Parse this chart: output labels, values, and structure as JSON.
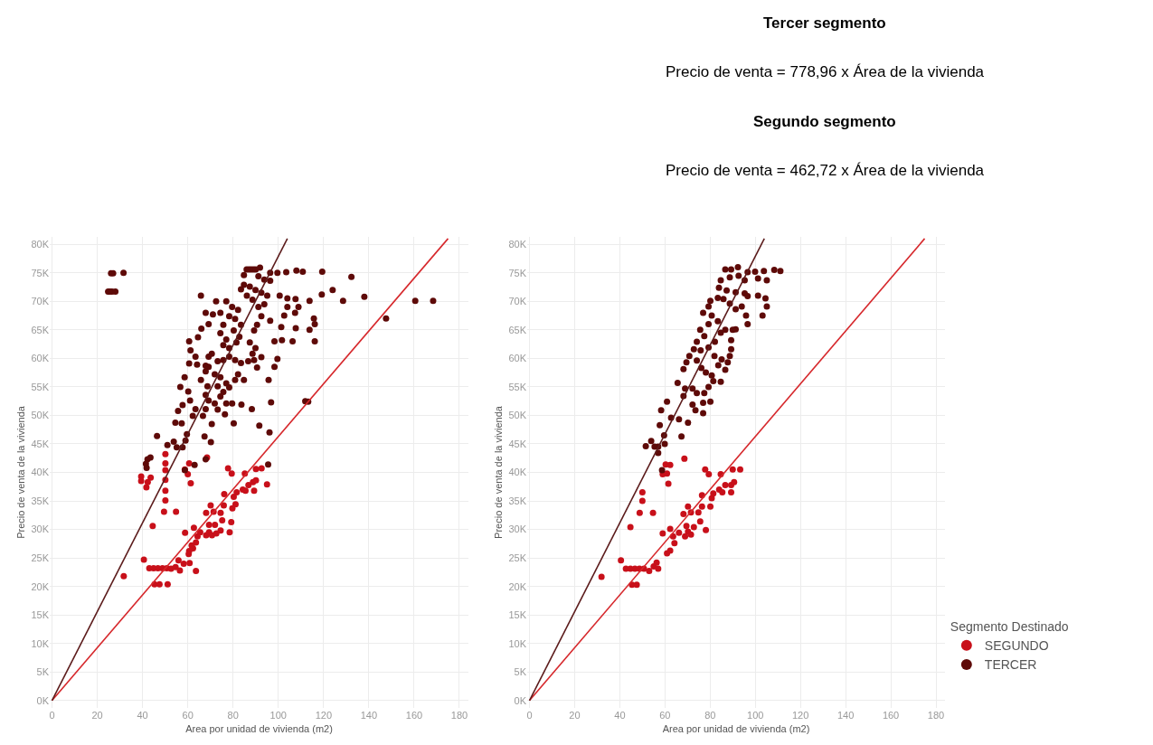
{
  "chart_data": [
    {
      "type": "scatter",
      "xlabel": "Area por unidad de vivienda (m2)",
      "ylabel": "Precio de venta de la vivienda",
      "xlim": [
        -1,
        184
      ],
      "xticks": [
        0,
        20,
        40,
        60,
        80,
        100,
        120,
        140,
        160,
        180
      ],
      "ylim": [
        -1300,
        81300
      ],
      "yticks": [
        {
          "value": 0,
          "label": "0K"
        },
        {
          "value": 5000,
          "label": "5K"
        },
        {
          "value": 10000,
          "label": "10K"
        },
        {
          "value": 15000,
          "label": "15K"
        },
        {
          "value": 20000,
          "label": "20K"
        },
        {
          "value": 25000,
          "label": "25K"
        },
        {
          "value": 30000,
          "label": "30K"
        },
        {
          "value": 35000,
          "label": "35K"
        },
        {
          "value": 40000,
          "label": "40K"
        },
        {
          "value": 45000,
          "label": "45K"
        },
        {
          "value": 50000,
          "label": "50K"
        },
        {
          "value": 55000,
          "label": "55K"
        },
        {
          "value": 60000,
          "label": "60K"
        },
        {
          "value": 65000,
          "label": "65K"
        },
        {
          "value": 70000,
          "label": "70K"
        },
        {
          "value": 75000,
          "label": "75K"
        },
        {
          "value": 80000,
          "label": "80K"
        }
      ],
      "grid": true,
      "marker": "circle",
      "series": [
        {
          "color": "#c8101a",
          "x": [
            31.7,
            40.6,
            43,
            44.9,
            46.8,
            48.8,
            50.7,
            52.6,
            54.6,
            56.5,
            55.9,
            58.2,
            60.8,
            63.6,
            45.3,
            47.5,
            51.1,
            44.5,
            49.5,
            54.8,
            50.1,
            50.1,
            50.1,
            50.1,
            50.1,
            50.1,
            39.4,
            39.4,
            41.7,
            42.3,
            43.6,
            58.7,
            60,
            61.3,
            60.6,
            68.5,
            58.8,
            62.7,
            60.6,
            62.3,
            63.6,
            64.3,
            65.5,
            68.1,
            69.4,
            70.7,
            72.6,
            69.4,
            70.1,
            68.1,
            71.4,
            72,
            74.5,
            75.2,
            74.5,
            75.9,
            76.1,
            78.5,
            79.2,
            79.7,
            81.1,
            80.3,
            81.6,
            84.3,
            85.5,
            86.8,
            88.8,
            90.1,
            89.3,
            95,
            85.2,
            90.1,
            92.6,
            77.8,
            79.4,
            61.7,
            60.4
          ],
          "values": [
            21800,
            24700,
            23200,
            23200,
            23200,
            23200,
            23200,
            23100,
            23400,
            22800,
            24600,
            24000,
            24100,
            22700,
            20400,
            20400,
            20400,
            30600,
            33100,
            33100,
            35100,
            36800,
            38700,
            40400,
            41600,
            43200,
            39300,
            38500,
            37400,
            38300,
            39100,
            40500,
            39700,
            38100,
            41600,
            42600,
            29400,
            30300,
            26200,
            26700,
            27700,
            28800,
            29500,
            29000,
            29500,
            29000,
            29300,
            30800,
            34200,
            32900,
            33100,
            30800,
            29800,
            31600,
            32900,
            34200,
            36200,
            29500,
            31300,
            33700,
            34400,
            35700,
            36500,
            37000,
            36800,
            37800,
            38300,
            38600,
            36800,
            37900,
            39800,
            40600,
            40700,
            40700,
            39800,
            27200,
            25700
          ]
        },
        {
          "color": "#5e0a08",
          "x": [
            26.1,
            27,
            31.6,
            24.8,
            25.5,
            26.5,
            28,
            65.8,
            91.9,
            86,
            87,
            88,
            89,
            90,
            96.4,
            99.6,
            103.5,
            108,
            110.8,
            119.4,
            132.3,
            124,
            119.2,
            128.6,
            138,
            160.5,
            168.4,
            147.6,
            111.9,
            113.2,
            96.1,
            95.5,
            100.6,
            104,
            107.6,
            113.8,
            104,
            108.9,
            107.4,
            115.7,
            116.1,
            113.8,
            107.7,
            101.3,
            101.6,
            106.3,
            116.1,
            98.3,
            99.6,
            98.3,
            95.7,
            96.8,
            91.6,
            96.4,
            102.6,
            88.3,
            83.7,
            80.3,
            84.8,
            90.6,
            92.5,
            86.7,
            82.2,
            80.9,
            83.5,
            80.3,
            82.8,
            81.5,
            78.3,
            75.7,
            77,
            74.4,
            75.7,
            78.3,
            79.6,
            77,
            72.5,
            74.4,
            71.1,
            67.9,
            69.2,
            66,
            64.5,
            60.6,
            61.2,
            63.4,
            60.6,
            64.1,
            67.9,
            69.2,
            70.6,
            73.2,
            75.7,
            78.3,
            80.9,
            83.5,
            89.3,
            89.9,
            88.6,
            87.4,
            89.3,
            90.6,
            91.2,
            92.5,
            93.8,
            95.1,
            92.5,
            89.9,
            87.4,
            84.8,
            83.5,
            86.1,
            88.6,
            91.2,
            93.8,
            96.4,
            84.8,
            69.2,
            67.9,
            71.9,
            74.4,
            77,
            73.2,
            75.7,
            78.3,
            80.9,
            82.2,
            74.4,
            71.9,
            77,
            79.6,
            73.2,
            76.4,
            69.2,
            67.9,
            65.8,
            68.7,
            66.7,
            67.9,
            70.6,
            62.2,
            57.7,
            55.7,
            54.5,
            57.3,
            56.7,
            60.2,
            58.6,
            61,
            63.4,
            59.6,
            59,
            57.7,
            55.1,
            53.8,
            51,
            46.4,
            67.4,
            70.2,
            67.9,
            63,
            58.7,
            42.2,
            41.5,
            43.5,
            41.8
          ],
          "values": [
            74900,
            74900,
            75000,
            71700,
            71700,
            71700,
            71700,
            71000,
            75900,
            75600,
            75600,
            75600,
            75600,
            75600,
            75000,
            75000,
            75100,
            75400,
            75200,
            75200,
            74300,
            72000,
            71200,
            70100,
            70800,
            70100,
            70100,
            67000,
            52500,
            52400,
            47000,
            41400,
            71000,
            70500,
            70400,
            70100,
            69000,
            69000,
            68000,
            67000,
            66000,
            65000,
            65300,
            65500,
            63200,
            63000,
            63000,
            63000,
            59900,
            58500,
            56200,
            52300,
            48200,
            66600,
            67500,
            51100,
            51900,
            48600,
            56200,
            58400,
            60200,
            59500,
            68500,
            66900,
            65900,
            64900,
            63800,
            62800,
            61800,
            62300,
            63300,
            64400,
            65900,
            67400,
            69000,
            70000,
            70000,
            68000,
            67700,
            68000,
            66000,
            65200,
            63700,
            63000,
            61400,
            60300,
            59100,
            58900,
            58700,
            60300,
            60800,
            59500,
            59700,
            60300,
            59700,
            59200,
            59700,
            61800,
            60800,
            62800,
            64900,
            65900,
            69000,
            67400,
            69500,
            71000,
            71500,
            72000,
            72600,
            72900,
            72100,
            71000,
            70300,
            74400,
            73800,
            73600,
            74600,
            58500,
            57700,
            57200,
            56700,
            55600,
            55100,
            54100,
            54900,
            56200,
            57200,
            53300,
            52100,
            52100,
            52100,
            51000,
            50200,
            52600,
            53600,
            56200,
            55100,
            49900,
            51100,
            48500,
            49900,
            51800,
            50800,
            48700,
            48600,
            55000,
            54200,
            56700,
            52600,
            51100,
            46700,
            45600,
            44400,
            44400,
            45400,
            44800,
            46400,
            46300,
            45300,
            42300,
            41300,
            40400,
            42300,
            41500,
            42600,
            40800
          ]
        },
        {
          "type": "line",
          "marker": "none",
          "color": "#d6282c",
          "x": [
            0,
            175
          ],
          "values": [
            0,
            81000
          ]
        },
        {
          "type": "line",
          "marker": "none",
          "color": "#5c1c1c",
          "x": [
            0,
            104
          ],
          "values": [
            0,
            81000
          ]
        }
      ]
    },
    {
      "type": "scatter",
      "xlabel": "Area por unidad de vivienda (m2)",
      "ylabel": "Precio de venta de la vivienda",
      "xlim": [
        -1,
        184
      ],
      "xticks": [
        0,
        20,
        40,
        60,
        80,
        100,
        120,
        140,
        160,
        180
      ],
      "ylim": [
        -1300,
        81300
      ],
      "yticks": [
        {
          "value": 0,
          "label": "0K"
        },
        {
          "value": 5000,
          "label": "5K"
        },
        {
          "value": 10000,
          "label": "10K"
        },
        {
          "value": 15000,
          "label": "15K"
        },
        {
          "value": 20000,
          "label": "20K"
        },
        {
          "value": 25000,
          "label": "25K"
        },
        {
          "value": 30000,
          "label": "30K"
        },
        {
          "value": 35000,
          "label": "35K"
        },
        {
          "value": 40000,
          "label": "40K"
        },
        {
          "value": 45000,
          "label": "45K"
        },
        {
          "value": 50000,
          "label": "50K"
        },
        {
          "value": 55000,
          "label": "55K"
        },
        {
          "value": 60000,
          "label": "60K"
        },
        {
          "value": 65000,
          "label": "65K"
        },
        {
          "value": 70000,
          "label": "70K"
        },
        {
          "value": 75000,
          "label": "75K"
        },
        {
          "value": 80000,
          "label": "80K"
        }
      ],
      "grid": true,
      "marker": "circle",
      "legend": "bottom right",
      "legend_title": "Segmento Destinado",
      "annotations": [
        "Tercer segmento",
        "Precio de venta = 778,96 x Área de la vivienda",
        "Segundo segmento",
        "Precio de venta = 462,72 x Área de la vivienda"
      ],
      "series": [
        {
          "name": "SEGUNDO",
          "color": "#c8101a",
          "x": [
            31.9,
            40.5,
            42.7,
            44.7,
            46.7,
            48.7,
            50.7,
            53,
            55,
            56.3,
            57,
            45.4,
            47.5,
            44.7,
            48.8,
            54.7,
            50,
            50,
            59,
            62.3,
            60.9,
            62.3,
            64.2,
            63.6,
            66.2,
            68.9,
            70.2,
            71.5,
            72.8,
            69.5,
            70.2,
            68.2,
            71.5,
            74.8,
            75.6,
            78.1,
            76.4,
            76.4,
            80.1,
            80.7,
            81.4,
            84,
            85.4,
            86.7,
            89.3,
            90.6,
            89.3,
            84.7,
            90,
            93.3,
            77.8,
            79.4,
            59,
            60.9,
            61.5,
            60.3,
            62.3,
            68.6
          ],
          "values": [
            21700,
            24600,
            23100,
            23100,
            23100,
            23100,
            23100,
            22700,
            23500,
            24200,
            23100,
            20300,
            20300,
            30400,
            32900,
            32900,
            35000,
            36500,
            29300,
            30100,
            25800,
            26300,
            27600,
            28800,
            29400,
            28800,
            29600,
            29100,
            30400,
            30600,
            34000,
            32700,
            33000,
            33000,
            31400,
            29900,
            34000,
            36000,
            34000,
            35500,
            36300,
            37000,
            36500,
            37800,
            37800,
            38300,
            36500,
            39700,
            40500,
            40500,
            40500,
            39700,
            39700,
            39800,
            38000,
            41400,
            41300,
            42400
          ]
        },
        {
          "name": "TERCER",
          "color": "#5e0a08",
          "x": [
            92.3,
            89.3,
            86.7,
            96.6,
            99.9,
            103.8,
            108.4,
            111.1,
            105.1,
            101.2,
            95.3,
            92.6,
            88.7,
            84.7,
            83.9,
            87.3,
            91.3,
            95.3,
            96.6,
            101.2,
            104.5,
            105.1,
            103.2,
            96.6,
            95.9,
            94,
            91.3,
            88.7,
            85.9,
            83.4,
            80.1,
            79.3,
            76.9,
            80.7,
            83.4,
            79.3,
            75.6,
            77.4,
            74.1,
            72.8,
            75.8,
            79.3,
            82.1,
            84.7,
            86.7,
            90,
            91.3,
            89.3,
            89.3,
            88.7,
            87.8,
            86.7,
            84.7,
            81.4,
            79.3,
            80.7,
            78.1,
            76.1,
            74.1,
            70.8,
            69.5,
            68.2,
            65.6,
            68.9,
            72.2,
            74.1,
            77.4,
            80.1,
            76.9,
            72.2,
            73.5,
            76.9,
            68.2,
            70.2,
            66.2,
            62.7,
            60.9,
            58.3,
            57.7,
            59.6,
            59.9,
            57,
            55.4,
            53.9,
            51.5,
            57,
            67.3,
            85.1,
            81.9,
            83.6,
            58.7
          ],
          "values": [
            76000,
            75600,
            75600,
            75100,
            75200,
            75300,
            75500,
            75300,
            73700,
            74000,
            73700,
            74500,
            74200,
            73700,
            72400,
            71900,
            71600,
            71400,
            70900,
            71000,
            70500,
            69100,
            67500,
            66000,
            67500,
            69100,
            68600,
            69600,
            70400,
            70600,
            70100,
            69100,
            68000,
            67500,
            66500,
            66000,
            65000,
            63900,
            62900,
            61600,
            61400,
            61900,
            62900,
            64500,
            65000,
            65000,
            65100,
            63200,
            61600,
            60400,
            59300,
            58000,
            55900,
            56000,
            55000,
            57000,
            57500,
            58300,
            59600,
            60400,
            59300,
            58100,
            55700,
            54700,
            54700,
            53900,
            53900,
            52400,
            52200,
            51900,
            50900,
            50400,
            53400,
            48700,
            49300,
            49600,
            52400,
            50900,
            48300,
            46500,
            45000,
            44500,
            44500,
            45500,
            44600,
            43400,
            46300,
            59800,
            60400,
            58800,
            40400
          ]
        },
        {
          "type": "line",
          "marker": "none",
          "color": "#d6282c",
          "x": [
            0,
            175
          ],
          "values": [
            0,
            81000
          ]
        },
        {
          "type": "line",
          "marker": "none",
          "color": "#5c1c1c",
          "x": [
            0,
            104
          ],
          "values": [
            0,
            81000
          ]
        }
      ]
    }
  ]
}
